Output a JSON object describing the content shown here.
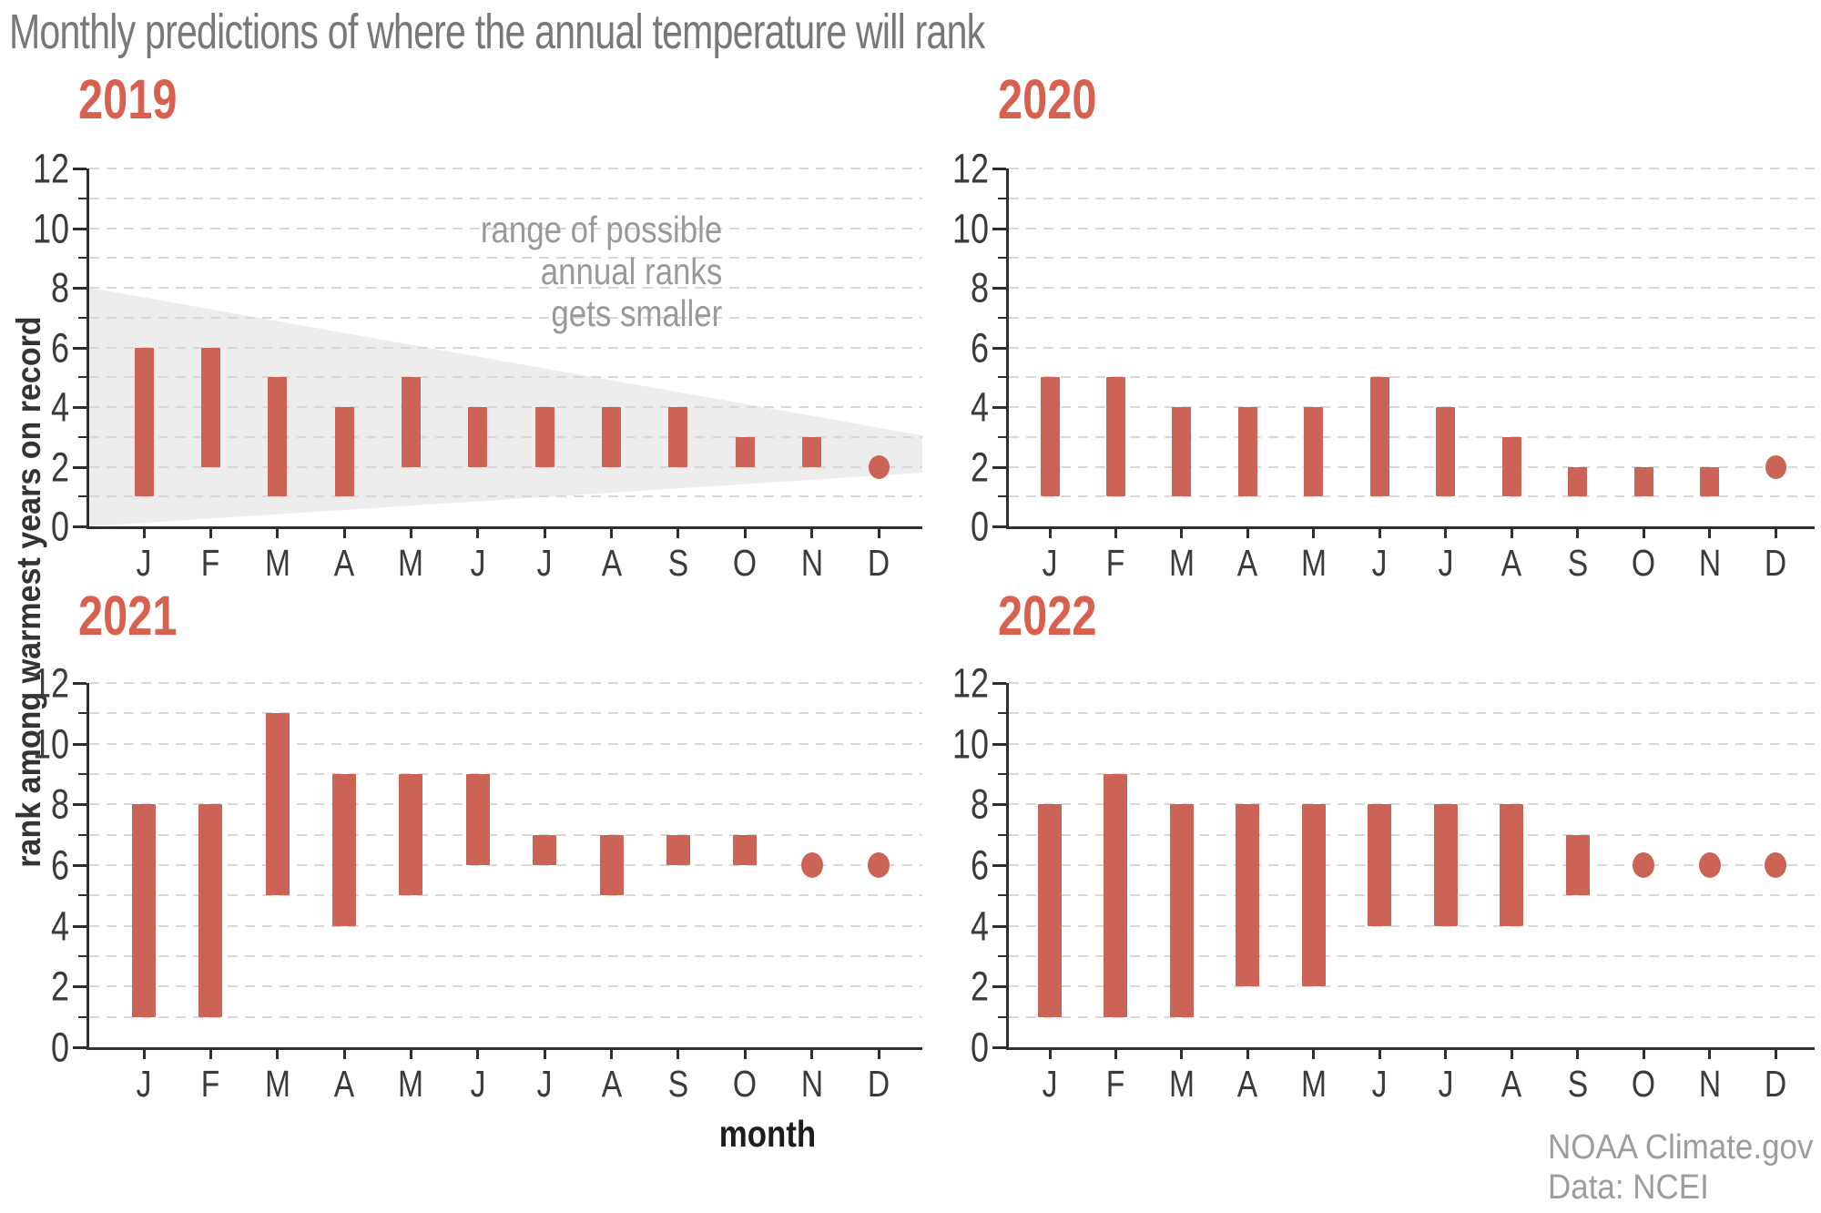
{
  "title": "Monthly predictions of where the annual temperature will rank",
  "ylabel": "rank among warmest years on record",
  "xlabel": "month",
  "attribution": {
    "line1": "NOAA Climate.gov",
    "line2": "Data: NCEI"
  },
  "colors": {
    "bar": "#cb6457",
    "year_label": "#d8604e",
    "title": "#787878",
    "annotation": "#999999",
    "axis": "#2f2f2f",
    "tick_text": "#3b3b3b",
    "grid": "#d8d8d8",
    "wedge_fill": "#ededed",
    "attribution_text": "#9d9d9d"
  },
  "chart_data": [
    {
      "type": "bar",
      "year": "2019",
      "months": [
        "J",
        "F",
        "M",
        "A",
        "M",
        "J",
        "J",
        "A",
        "S",
        "O",
        "N",
        "D"
      ],
      "ranges": [
        [
          1,
          6
        ],
        [
          2,
          6
        ],
        [
          1,
          5
        ],
        [
          1,
          4
        ],
        [
          2,
          5
        ],
        [
          2,
          4
        ],
        [
          2,
          4
        ],
        [
          2,
          4
        ],
        [
          2,
          4
        ],
        [
          2,
          3
        ],
        [
          2,
          3
        ],
        [
          2,
          2
        ]
      ],
      "ylabel": "rank among warmest years on record",
      "ylim": [
        0,
        12
      ],
      "yticks": [
        0,
        2,
        4,
        6,
        8,
        10,
        12
      ],
      "grid": true,
      "note": "single rank value months are drawn as dots",
      "annotation": [
        "range of possible",
        "annual ranks",
        "gets smaller"
      ],
      "range_band": {
        "left_top": 8,
        "left_bottom": 0,
        "right_top": 3.05,
        "right_bottom": 1.8
      }
    },
    {
      "type": "bar",
      "year": "2020",
      "months": [
        "J",
        "F",
        "M",
        "A",
        "M",
        "J",
        "J",
        "A",
        "S",
        "O",
        "N",
        "D"
      ],
      "ranges": [
        [
          1,
          5
        ],
        [
          1,
          5
        ],
        [
          1,
          4
        ],
        [
          1,
          4
        ],
        [
          1,
          4
        ],
        [
          1,
          5
        ],
        [
          1,
          4
        ],
        [
          1,
          3
        ],
        [
          1,
          2
        ],
        [
          1,
          2
        ],
        [
          1,
          2
        ],
        [
          2,
          2
        ]
      ],
      "ylim": [
        0,
        12
      ],
      "yticks": [
        0,
        2,
        4,
        6,
        8,
        10,
        12
      ],
      "grid": true
    },
    {
      "type": "bar",
      "year": "2021",
      "months": [
        "J",
        "F",
        "M",
        "A",
        "M",
        "J",
        "J",
        "A",
        "S",
        "O",
        "N",
        "D"
      ],
      "ranges": [
        [
          1,
          8
        ],
        [
          1,
          8
        ],
        [
          5,
          11
        ],
        [
          4,
          9
        ],
        [
          5,
          9
        ],
        [
          6,
          9
        ],
        [
          6,
          7
        ],
        [
          5,
          7
        ],
        [
          6,
          7
        ],
        [
          6,
          7
        ],
        [
          6,
          6
        ],
        [
          6,
          6
        ]
      ],
      "ylim": [
        0,
        12
      ],
      "yticks": [
        0,
        2,
        4,
        6,
        8,
        10,
        12
      ],
      "grid": true
    },
    {
      "type": "bar",
      "year": "2022",
      "months": [
        "J",
        "F",
        "M",
        "A",
        "M",
        "J",
        "J",
        "A",
        "S",
        "O",
        "N",
        "D"
      ],
      "ranges": [
        [
          1,
          8
        ],
        [
          1,
          9
        ],
        [
          1,
          8
        ],
        [
          2,
          8
        ],
        [
          2,
          8
        ],
        [
          4,
          8
        ],
        [
          4,
          8
        ],
        [
          4,
          8
        ],
        [
          5,
          7
        ],
        [
          6,
          6
        ],
        [
          6,
          6
        ],
        [
          6,
          6
        ]
      ],
      "ylim": [
        0,
        12
      ],
      "yticks": [
        0,
        2,
        4,
        6,
        8,
        10,
        12
      ],
      "grid": true
    }
  ]
}
